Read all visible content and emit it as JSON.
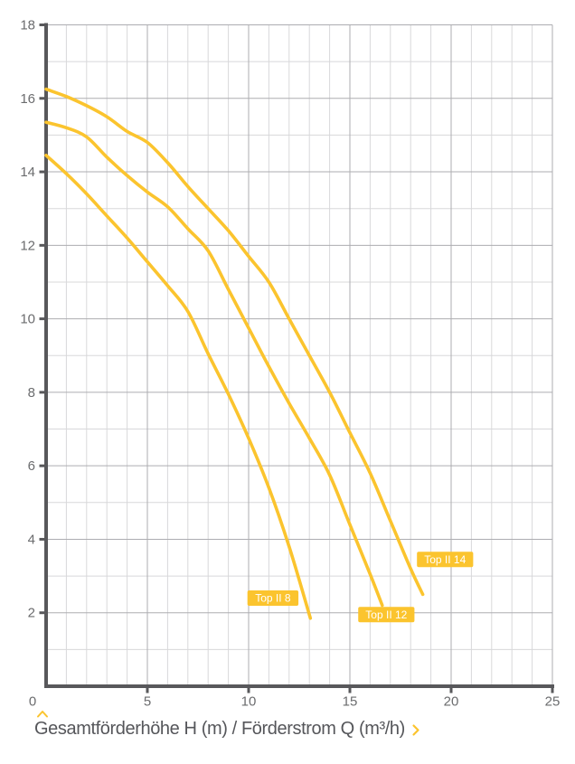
{
  "page": {
    "background": "#FFFFFF"
  },
  "caption": {
    "text": "Gesamtförderhöhe H (m) / Förderstrom Q (m³/h)"
  },
  "style": {
    "curve_color": "#FBC42E",
    "badge_bg": "#FBC42E",
    "badge_text_color": "#FFFFFF",
    "axis_color": "#58585B",
    "grid_major_color": "#ADADB1",
    "grid_minor_color": "#D8D8DA",
    "tick_label_color": "#6B6C6E",
    "caption_text_color": "#55565A",
    "arrow_color": "#FBC42E",
    "background": "#FFFFFF"
  },
  "chart_data": {
    "type": "line",
    "title": "",
    "xlabel": "Förderstrom Q (m³/h)",
    "ylabel": "Gesamtförderhöhe H (m)",
    "xlim": [
      0,
      25
    ],
    "ylim": [
      0,
      18
    ],
    "grid": true,
    "x_minor_step": 1,
    "x_major_step": 5,
    "y_minor_step": 1,
    "y_major_step": 2,
    "x_ticks": [
      0,
      5,
      10,
      15,
      20,
      25
    ],
    "y_ticks": [
      2,
      4,
      6,
      8,
      10,
      12,
      14,
      16,
      18
    ],
    "origin_label": "0",
    "legend_position": "on-curve-badges",
    "series": [
      {
        "name": "Top II 8",
        "points": [
          [
            0,
            14.45
          ],
          [
            1,
            13.95
          ],
          [
            2,
            13.4
          ],
          [
            3,
            12.8
          ],
          [
            4,
            12.2
          ],
          [
            5,
            11.55
          ],
          [
            6,
            10.9
          ],
          [
            7,
            10.2
          ],
          [
            8,
            9.05
          ],
          [
            9,
            7.95
          ],
          [
            10,
            6.75
          ],
          [
            11,
            5.4
          ],
          [
            12,
            3.8
          ],
          [
            13.05,
            1.85
          ]
        ],
        "label_anchor": [
          11.2,
          2.4
        ]
      },
      {
        "name": "Top II 12",
        "points": [
          [
            0,
            15.35
          ],
          [
            1,
            15.2
          ],
          [
            2,
            14.95
          ],
          [
            3,
            14.4
          ],
          [
            4,
            13.9
          ],
          [
            5,
            13.45
          ],
          [
            6,
            13.05
          ],
          [
            7,
            12.45
          ],
          [
            8,
            11.85
          ],
          [
            9,
            10.8
          ],
          [
            10,
            9.75
          ],
          [
            11,
            8.7
          ],
          [
            12,
            7.7
          ],
          [
            13,
            6.75
          ],
          [
            14,
            5.75
          ],
          [
            15,
            4.4
          ],
          [
            16,
            3.05
          ],
          [
            16.6,
            2.2
          ]
        ],
        "label_anchor": [
          16.8,
          1.95
        ]
      },
      {
        "name": "Top II 14",
        "points": [
          [
            0,
            16.25
          ],
          [
            1,
            16.05
          ],
          [
            2,
            15.8
          ],
          [
            3,
            15.5
          ],
          [
            4,
            15.1
          ],
          [
            5,
            14.8
          ],
          [
            6,
            14.25
          ],
          [
            7,
            13.6
          ],
          [
            8,
            13.0
          ],
          [
            9,
            12.4
          ],
          [
            10,
            11.7
          ],
          [
            11,
            11.0
          ],
          [
            12,
            10.0
          ],
          [
            13,
            9.0
          ],
          [
            14,
            8.0
          ],
          [
            15,
            6.9
          ],
          [
            16,
            5.8
          ],
          [
            17,
            4.5
          ],
          [
            18,
            3.2
          ],
          [
            18.6,
            2.5
          ]
        ],
        "label_anchor": [
          19.7,
          3.45
        ]
      }
    ]
  }
}
